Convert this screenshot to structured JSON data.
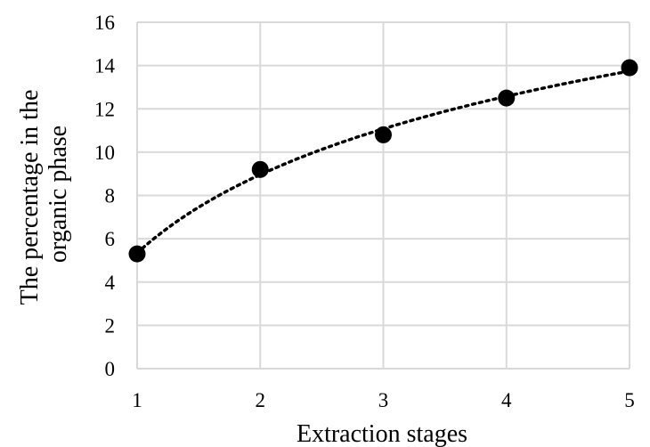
{
  "chart_data": {
    "type": "scatter",
    "title": "",
    "xlabel": "Extraction stages",
    "ylabel": [
      "The percentage in the",
      "organic phase"
    ],
    "xlim": [
      1,
      5
    ],
    "ylim": [
      0,
      16
    ],
    "x_ticks": [
      "1",
      "2",
      "3",
      "4",
      "5"
    ],
    "y_ticks": [
      "0",
      "2",
      "4",
      "6",
      "8",
      "10",
      "12",
      "14",
      "16"
    ],
    "grid": true,
    "legend": "none",
    "trendline": "logarithmic",
    "x": [
      1,
      2,
      3,
      4,
      5
    ],
    "y": [
      5.3,
      9.2,
      10.8,
      12.5,
      13.9
    ],
    "colors": {
      "marker": "#000000",
      "grid": "#d9d9d9",
      "trendline": "#000000"
    }
  }
}
